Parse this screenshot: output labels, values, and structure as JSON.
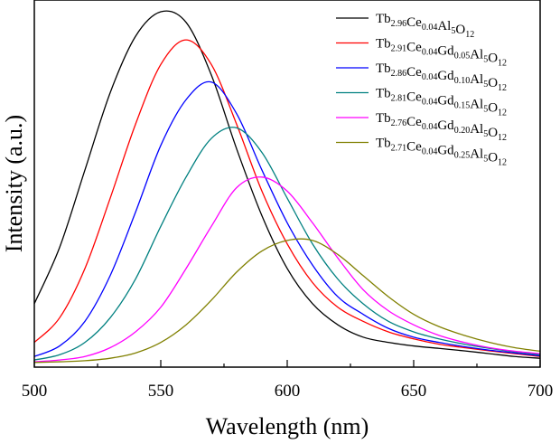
{
  "chart_data": {
    "type": "line",
    "title": "",
    "xlabel": "Wavelength (nm)",
    "ylabel": "Intensity (a.u.)",
    "xlim": [
      500,
      700
    ],
    "ylim": [
      0,
      1.04
    ],
    "xticks": [
      500,
      550,
      600,
      650,
      700
    ],
    "x": [
      500,
      510,
      520,
      530,
      540,
      550,
      560,
      570,
      580,
      590,
      600,
      610,
      620,
      630,
      640,
      650,
      660,
      670,
      680,
      690,
      700
    ],
    "legend_position": "top-right",
    "series": [
      {
        "name": "Tb2.96Ce0.04Al5O12",
        "parts": [
          [
            "Tb",
            "2.96"
          ],
          [
            "Ce",
            "0.04"
          ],
          [
            "Al",
            "5"
          ],
          [
            "O",
            "12"
          ]
        ],
        "color": "#000000",
        "values": [
          0.17,
          0.33,
          0.55,
          0.77,
          0.93,
          1.0,
          0.97,
          0.82,
          0.61,
          0.42,
          0.27,
          0.17,
          0.11,
          0.075,
          0.06,
          0.05,
          0.043,
          0.036,
          0.028,
          0.02,
          0.015
        ]
      },
      {
        "name": "Tb2.91Ce0.04Gd0.05Al5O12",
        "parts": [
          [
            "Tb",
            "2.91"
          ],
          [
            "Ce",
            "0.04"
          ],
          [
            "Gd",
            "0.05"
          ],
          [
            "Al",
            "5"
          ],
          [
            "O",
            "12"
          ]
        ],
        "color": "#ff0000",
        "values": [
          0.06,
          0.13,
          0.27,
          0.47,
          0.68,
          0.85,
          0.92,
          0.85,
          0.68,
          0.49,
          0.34,
          0.23,
          0.16,
          0.12,
          0.09,
          0.07,
          0.055,
          0.045,
          0.036,
          0.028,
          0.02
        ]
      },
      {
        "name": "Tb2.86Ce0.04Gd0.10Al5O12",
        "parts": [
          [
            "Tb",
            "2.86"
          ],
          [
            "Ce",
            "0.04"
          ],
          [
            "Gd",
            "0.10"
          ],
          [
            "Al",
            "5"
          ],
          [
            "O",
            "12"
          ]
        ],
        "color": "#0000ff",
        "values": [
          0.02,
          0.05,
          0.12,
          0.25,
          0.43,
          0.62,
          0.75,
          0.8,
          0.71,
          0.55,
          0.4,
          0.28,
          0.19,
          0.14,
          0.1,
          0.075,
          0.06,
          0.048,
          0.038,
          0.03,
          0.022
        ]
      },
      {
        "name": "Tb2.81Ce0.04Gd0.15Al5O12",
        "parts": [
          [
            "Tb",
            "2.81"
          ],
          [
            "Ce",
            "0.04"
          ],
          [
            "Gd",
            "0.15"
          ],
          [
            "Al",
            "5"
          ],
          [
            "O",
            "12"
          ]
        ],
        "color": "#008080",
        "values": [
          0.01,
          0.025,
          0.06,
          0.13,
          0.24,
          0.39,
          0.53,
          0.64,
          0.67,
          0.6,
          0.47,
          0.34,
          0.24,
          0.17,
          0.12,
          0.09,
          0.07,
          0.055,
          0.043,
          0.033,
          0.025
        ]
      },
      {
        "name": "Tb2.76Ce0.04Gd0.20Al5O12",
        "parts": [
          [
            "Tb",
            "2.76"
          ],
          [
            "Ce",
            "0.04"
          ],
          [
            "Gd",
            "0.20"
          ],
          [
            "Al",
            "5"
          ],
          [
            "O",
            "12"
          ]
        ],
        "color": "#ff00ff",
        "values": [
          0.005,
          0.01,
          0.02,
          0.045,
          0.09,
          0.16,
          0.27,
          0.39,
          0.5,
          0.53,
          0.49,
          0.4,
          0.3,
          0.21,
          0.15,
          0.11,
          0.08,
          0.06,
          0.045,
          0.035,
          0.028
        ]
      },
      {
        "name": "Tb2.71Ce0.04Gd0.25Al5O12",
        "parts": [
          [
            "Tb",
            "2.71"
          ],
          [
            "Ce",
            "0.04"
          ],
          [
            "Gd",
            "0.25"
          ],
          [
            "Al",
            "5"
          ],
          [
            "O",
            "12"
          ]
        ],
        "color": "#808000",
        "values": [
          0.003,
          0.005,
          0.008,
          0.015,
          0.03,
          0.06,
          0.11,
          0.18,
          0.26,
          0.32,
          0.35,
          0.35,
          0.31,
          0.25,
          0.19,
          0.14,
          0.105,
          0.08,
          0.06,
          0.045,
          0.035
        ]
      }
    ]
  }
}
